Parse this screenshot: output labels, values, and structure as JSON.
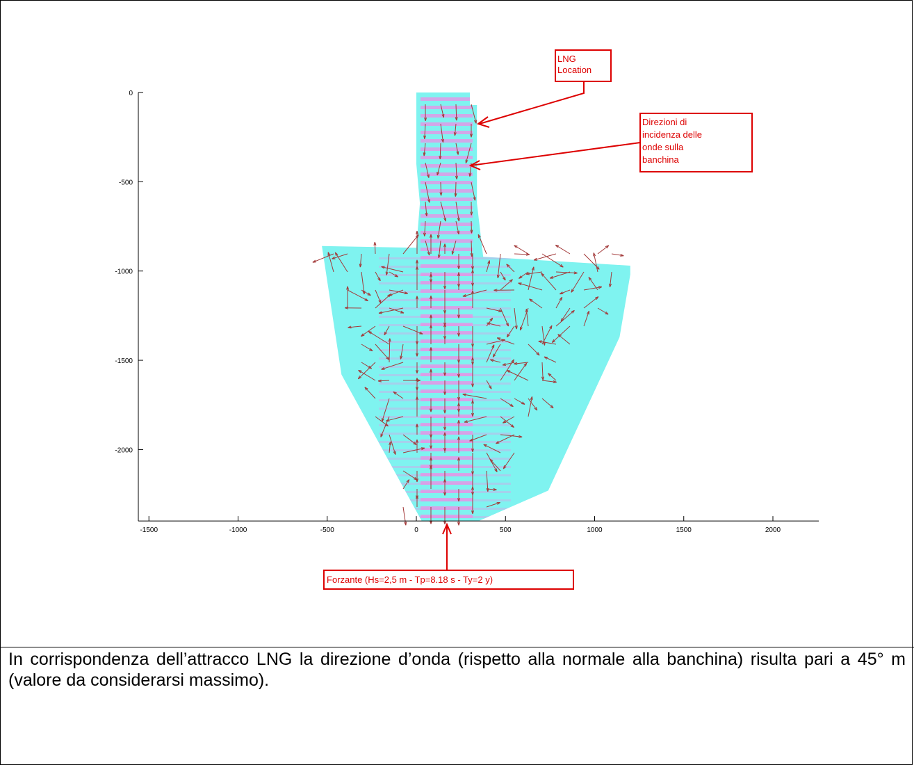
{
  "chart_data": {
    "type": "quiver",
    "xlim": [
      -1550,
      2250
    ],
    "ylim": [
      -2400,
      0
    ],
    "xticks": [
      -1500,
      -1000,
      -500,
      0,
      500,
      1000,
      1500,
      2000
    ],
    "yticks": [
      0,
      -500,
      -1000,
      -1500,
      -2000
    ],
    "grid": false,
    "colors": {
      "field": "#7ff3f0",
      "crest": "#ee8ee6",
      "arrow": "#a33a3a",
      "annotation": "#dd0000",
      "axis": "#000000"
    },
    "domain_outline": [
      [
        0,
        0
      ],
      [
        300,
        0
      ],
      [
        300,
        -70
      ],
      [
        340,
        -70
      ],
      [
        340,
        -620
      ],
      [
        375,
        -920
      ],
      [
        1200,
        -970
      ],
      [
        1200,
        -1020
      ],
      [
        1140,
        -1370
      ],
      [
        740,
        -2230
      ],
      [
        350,
        -2400
      ],
      [
        30,
        -2400
      ],
      [
        -420,
        -1580
      ],
      [
        -530,
        -860
      ],
      [
        0,
        -870
      ],
      [
        20,
        -620
      ],
      [
        0,
        -400
      ]
    ],
    "annotations": [
      {
        "id": "lng",
        "text": "LNG\nLocation",
        "box_center": [
          820,
          -330
        ],
        "arrow_tip": [
          330,
          -190
        ]
      },
      {
        "id": "dir",
        "text": "Direzioni di\nincidenza delle\nonde sulla\nbanchina",
        "box_center": [
          1720,
          -380
        ],
        "arrow_tip": [
          295,
          -410
        ]
      },
      {
        "id": "forz",
        "text": "Forzante (Hs=2,5 m - Tp=8.18 s - Ty=2 y)",
        "box_center": [
          610,
          -2720
        ],
        "arrow_tip": [
          170,
          -2400
        ]
      }
    ]
  },
  "figure": {
    "annotations": {
      "lng_location": [
        "LNG",
        "Location"
      ],
      "wave_directions": [
        "Direzioni di",
        "incidenza delle",
        "onde sulla",
        "banchina"
      ],
      "forcing": "Forzante (Hs=2,5 m - Tp=8.18 s - Ty=2 y)"
    }
  },
  "caption": {
    "text": "In corrispondenza dell’attracco LNG la direzione d’onda (rispetto alla normale alla banchina) risulta pari a 45° m (valore da considerarsi massimo)."
  }
}
